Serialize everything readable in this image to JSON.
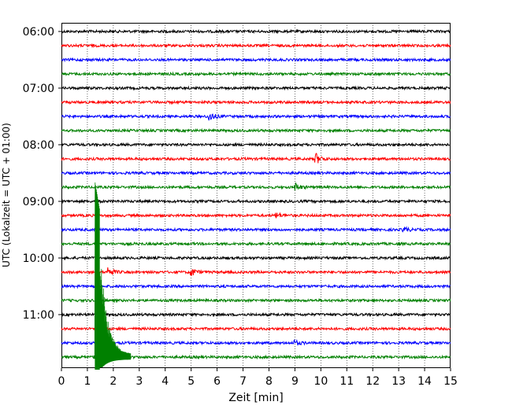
{
  "chart_data": {
    "type": "line",
    "title": "",
    "xlabel": "Zeit  [min]",
    "ylabel": "UTC (Lokalzeit = UTC + 01:00)",
    "xlim": [
      0,
      15
    ],
    "x_ticks": [
      "0",
      "1",
      "2",
      "3",
      "4",
      "5",
      "6",
      "7",
      "8",
      "9",
      "10",
      "11",
      "12",
      "13",
      "14",
      "15"
    ],
    "y_ticks": [
      "06:00",
      "07:00",
      "08:00",
      "09:00",
      "10:00",
      "11:00"
    ],
    "grid": "vertical dotted",
    "trace_interval_minutes": 15,
    "trace_colors": [
      "#000000",
      "#ff0000",
      "#0000ff",
      "#008000"
    ],
    "traces": [
      {
        "start": "06:00",
        "color": "#000000",
        "events": []
      },
      {
        "start": "06:15",
        "color": "#ff0000",
        "events": []
      },
      {
        "start": "06:30",
        "color": "#0000ff",
        "events": []
      },
      {
        "start": "06:45",
        "color": "#008000",
        "events": []
      },
      {
        "start": "07:00",
        "color": "#000000",
        "events": []
      },
      {
        "start": "07:15",
        "color": "#ff0000",
        "events": []
      },
      {
        "start": "07:30",
        "color": "#0000ff",
        "events": [
          {
            "t": 5.7,
            "amp": 6
          }
        ]
      },
      {
        "start": "07:45",
        "color": "#008000",
        "events": []
      },
      {
        "start": "08:00",
        "color": "#000000",
        "events": []
      },
      {
        "start": "08:15",
        "color": "#ff0000",
        "events": [
          {
            "t": 9.8,
            "amp": 7
          }
        ]
      },
      {
        "start": "08:30",
        "color": "#0000ff",
        "events": []
      },
      {
        "start": "08:45",
        "color": "#008000",
        "events": [
          {
            "t": 9.0,
            "amp": 5
          }
        ]
      },
      {
        "start": "09:00",
        "color": "#000000",
        "events": []
      },
      {
        "start": "09:15",
        "color": "#ff0000",
        "events": [
          {
            "t": 8.3,
            "amp": 3
          }
        ]
      },
      {
        "start": "09:30",
        "color": "#0000ff",
        "events": [
          {
            "t": 13.2,
            "amp": 3
          }
        ]
      },
      {
        "start": "09:45",
        "color": "#008000",
        "events": []
      },
      {
        "start": "10:00",
        "color": "#000000",
        "events": []
      },
      {
        "start": "10:15",
        "color": "#ff0000",
        "events": [
          {
            "t": 1.8,
            "amp": 6
          },
          {
            "t": 5.0,
            "amp": 5
          }
        ]
      },
      {
        "start": "10:30",
        "color": "#0000ff",
        "events": []
      },
      {
        "start": "10:45",
        "color": "#008000",
        "events": []
      },
      {
        "start": "11:00",
        "color": "#000000",
        "events": []
      },
      {
        "start": "11:15",
        "color": "#ff0000",
        "events": []
      },
      {
        "start": "11:30",
        "color": "#0000ff",
        "events": [
          {
            "t": 9.0,
            "amp": 3
          }
        ]
      },
      {
        "start": "11:45",
        "color": "#008000",
        "events": []
      }
    ],
    "large_event": {
      "trace_start": "11:45",
      "onset_minutes": 1.3,
      "color": "#008000"
    }
  }
}
